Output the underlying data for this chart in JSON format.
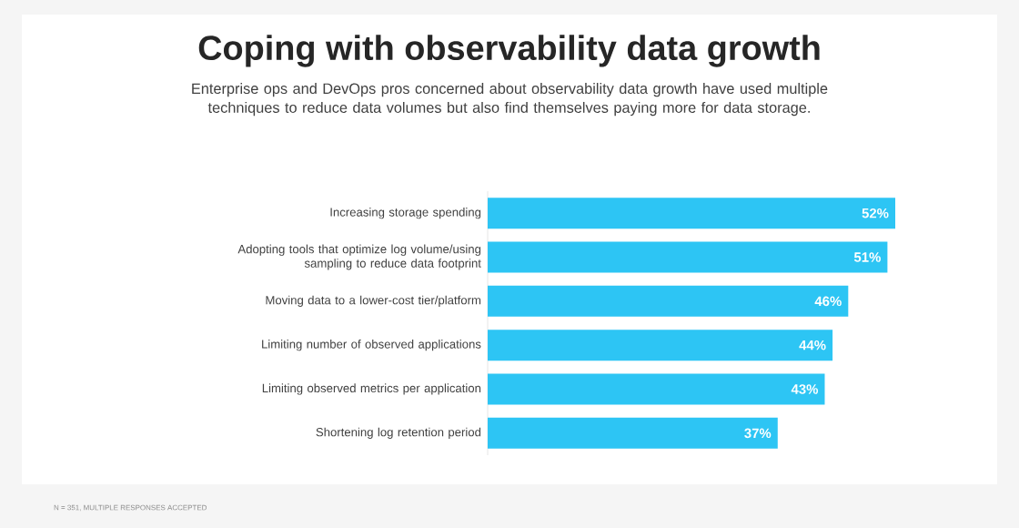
{
  "chart_data": {
    "type": "bar",
    "orientation": "horizontal",
    "title": "Coping with observability data growth",
    "subtitle": "Enterprise ops and DevOps pros concerned about observability data growth have used multiple techniques to reduce data volumes but also find themselves paying more for data storage.",
    "categories": [
      "Increasing storage spending",
      "Adopting tools that optimize log volume/using sampling to reduce data footprint",
      "Moving data to a lower-cost tier/platform",
      "Limiting number of observed applications",
      "Limiting observed metrics per application",
      "Shortening log retention period"
    ],
    "values": [
      52,
      51,
      46,
      44,
      43,
      37
    ],
    "value_labels": [
      "52%",
      "51%",
      "46%",
      "44%",
      "43%",
      "37%"
    ],
    "color": "#2dc5f4",
    "annotations": [
      "N = 351, MULTIPLE RESPONSES ACCEPTED"
    ]
  }
}
